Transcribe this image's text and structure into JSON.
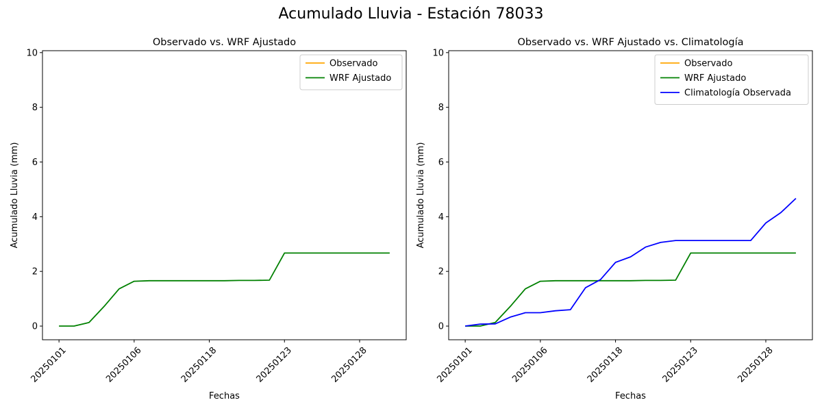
{
  "figure": {
    "title": "Acumulado Lluvia - Estación 78033"
  },
  "chart_data": [
    {
      "type": "line",
      "title": "Observado vs. WRF Ajustado",
      "xlabel": "Fechas",
      "ylabel": "Acumulado Lluvia (mm)",
      "x_tick_labels": [
        "20250101",
        "20250106",
        "20250118",
        "20250123",
        "20250128"
      ],
      "x_tick_index": [
        0,
        5,
        10,
        15,
        20
      ],
      "x_index_range": [
        -1.1,
        23.1
      ],
      "ylim": [
        -0.5,
        10.07
      ],
      "y_ticks": [
        0,
        2,
        4,
        6,
        8,
        10
      ],
      "grid": false,
      "legend_position": "upper right",
      "series": [
        {
          "name": "Observado",
          "color": "#ffa500",
          "values": []
        },
        {
          "name": "WRF Ajustado",
          "color": "#008000",
          "values": [
            0,
            0,
            0.13,
            0.72,
            1.36,
            1.64,
            1.66,
            1.66,
            1.66,
            1.66,
            1.66,
            1.66,
            1.67,
            1.67,
            1.68,
            2.67,
            2.67,
            2.67,
            2.67,
            2.67,
            2.67,
            2.67,
            2.67
          ]
        }
      ]
    },
    {
      "type": "line",
      "title": "Observado vs. WRF Ajustado vs. Climatología",
      "xlabel": "Fechas",
      "ylabel": "Acumulado Lluvia (mm)",
      "x_tick_labels": [
        "20250101",
        "20250106",
        "20250118",
        "20250123",
        "20250128"
      ],
      "x_tick_index": [
        0,
        5,
        10,
        15,
        20
      ],
      "x_index_range": [
        -1.1,
        23.1
      ],
      "ylim": [
        -0.5,
        10.07
      ],
      "y_ticks": [
        0,
        2,
        4,
        6,
        8,
        10
      ],
      "grid": false,
      "legend_position": "upper right",
      "series": [
        {
          "name": "Observado",
          "color": "#ffa500",
          "values": []
        },
        {
          "name": "WRF Ajustado",
          "color": "#008000",
          "values": [
            0,
            0,
            0.13,
            0.72,
            1.36,
            1.64,
            1.66,
            1.66,
            1.66,
            1.66,
            1.66,
            1.66,
            1.67,
            1.67,
            1.68,
            2.67,
            2.67,
            2.67,
            2.67,
            2.67,
            2.67,
            2.67,
            2.67
          ]
        },
        {
          "name": "Climatología Observada",
          "color": "#0000ff",
          "values": [
            0,
            0.07,
            0.08,
            0.33,
            0.49,
            0.49,
            0.56,
            0.6,
            1.4,
            1.7,
            2.33,
            2.53,
            2.89,
            3.06,
            3.13,
            3.13,
            3.13,
            3.13,
            3.13,
            3.13,
            3.77,
            4.15,
            4.67
          ]
        }
      ]
    }
  ]
}
